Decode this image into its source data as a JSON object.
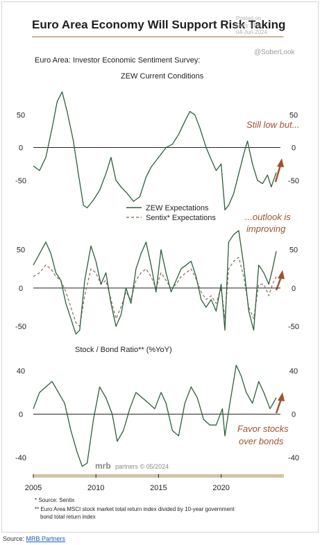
{
  "header": {
    "title": "Euro Area Economy Will Support Risk Taking",
    "watermark_posted": "Posted on",
    "watermark_site": "Daily Shot",
    "watermark_date": "04-Jun-2024",
    "watermark_handle": "@SoberLook"
  },
  "footer": {
    "footnote1": "*  Source: Sentix",
    "footnote2a": "** Euro Area MSCI stock market total return index divided by 10-year government",
    "footnote2b": "bond total return index",
    "brand_mrb": "mrb",
    "brand_partners": "partners © 05/2024",
    "source_label": "Source: ",
    "source_link": "MRB Partners"
  },
  "colors": {
    "zew": "#2d5e3a",
    "sentix": "#8a7a6a",
    "annotation": "#a0522d",
    "axis_bar": "#d2c4a8"
  },
  "x_axis": {
    "ticks": [
      2005,
      2010,
      2015,
      2020
    ],
    "range": [
      2005,
      2024.4
    ]
  },
  "chart_data": [
    {
      "type": "line",
      "title": "Euro Area:  Investor Economic Sentiment Survey:",
      "subtitle": "ZEW Current Conditions",
      "ylim": [
        -82,
        98
      ],
      "yticks": [
        50,
        0,
        -50
      ],
      "annotation": "Still low but...",
      "series": [
        {
          "name": "",
          "x": [
            2005,
            2005.5,
            2006,
            2006.5,
            2006.9,
            2007.3,
            2007.7,
            2008.2,
            2008.6,
            2009.0,
            2009.3,
            2009.8,
            2010.3,
            2010.8,
            2011.2,
            2011.6,
            2012.0,
            2012.5,
            2013.0,
            2013.5,
            2014.0,
            2014.4,
            2014.8,
            2015.2,
            2015.6,
            2016.1,
            2016.6,
            2017.1,
            2017.5,
            2017.9,
            2018.3,
            2018.8,
            2019.2,
            2019.6,
            2020.0,
            2020.3,
            2020.6,
            2021.0,
            2021.4,
            2021.8,
            2022.1,
            2022.5,
            2022.9,
            2023.3,
            2023.7,
            2024.0,
            2024.4
          ],
          "values": [
            -28,
            -35,
            -15,
            30,
            70,
            85,
            55,
            10,
            -40,
            -88,
            -92,
            -80,
            -65,
            -40,
            -15,
            -50,
            -60,
            -70,
            -82,
            -75,
            -45,
            -30,
            -20,
            -10,
            0,
            5,
            20,
            40,
            55,
            50,
            30,
            0,
            -18,
            -35,
            -25,
            -95,
            -88,
            -70,
            -40,
            -10,
            10,
            -25,
            -50,
            -55,
            -42,
            -60,
            -38
          ]
        }
      ]
    },
    {
      "type": "line",
      "title": "",
      "ylim": [
        -68,
        86
      ],
      "yticks": [
        50,
        0,
        -50
      ],
      "annotation_line1": "...outlook is",
      "annotation_line2": "improving",
      "series": [
        {
          "name": "ZEW Expectations",
          "x": [
            2005,
            2005.5,
            2006.0,
            2006.4,
            2006.8,
            2007.2,
            2007.6,
            2008.0,
            2008.4,
            2008.7,
            2009.1,
            2009.6,
            2010.0,
            2010.4,
            2010.8,
            2011.2,
            2011.6,
            2012.0,
            2012.4,
            2012.8,
            2013.2,
            2013.6,
            2014.0,
            2014.4,
            2014.8,
            2015.2,
            2015.6,
            2016.0,
            2016.4,
            2016.8,
            2017.2,
            2017.6,
            2018.0,
            2018.4,
            2018.8,
            2019.2,
            2019.6,
            2020.0,
            2020.3,
            2020.6,
            2021.0,
            2021.4,
            2021.8,
            2022.2,
            2022.6,
            2023.0,
            2023.4,
            2023.8,
            2024.1,
            2024.4
          ],
          "values": [
            30,
            45,
            60,
            45,
            20,
            10,
            -20,
            -40,
            -60,
            -55,
            10,
            55,
            35,
            5,
            20,
            -20,
            -50,
            -35,
            0,
            -20,
            25,
            45,
            60,
            30,
            -5,
            50,
            20,
            -5,
            10,
            25,
            30,
            35,
            15,
            -15,
            -25,
            -15,
            -30,
            5,
            -55,
            60,
            70,
            75,
            30,
            -30,
            -55,
            30,
            20,
            5,
            25,
            48
          ]
        },
        {
          "name": "Sentix* Expectations",
          "x": [
            2005,
            2005.5,
            2006.0,
            2006.4,
            2006.8,
            2007.2,
            2007.6,
            2008.0,
            2008.4,
            2008.7,
            2009.1,
            2009.6,
            2010.0,
            2010.4,
            2010.8,
            2011.2,
            2011.6,
            2012.0,
            2012.4,
            2012.8,
            2013.2,
            2013.6,
            2014.0,
            2014.4,
            2014.8,
            2015.2,
            2015.6,
            2016.0,
            2016.4,
            2016.8,
            2017.2,
            2017.6,
            2018.0,
            2018.4,
            2018.8,
            2019.2,
            2019.6,
            2020.0,
            2020.3,
            2020.6,
            2021.0,
            2021.4,
            2021.8,
            2022.2,
            2022.6,
            2023.0,
            2023.4,
            2023.8,
            2024.1,
            2024.4
          ],
          "values": [
            15,
            20,
            30,
            25,
            15,
            10,
            -5,
            -25,
            -45,
            -50,
            -10,
            25,
            20,
            5,
            10,
            -15,
            -40,
            -25,
            -5,
            -15,
            10,
            20,
            25,
            15,
            0,
            20,
            10,
            0,
            5,
            15,
            20,
            25,
            12,
            -5,
            -15,
            -10,
            -20,
            0,
            -40,
            25,
            35,
            40,
            15,
            -25,
            -40,
            5,
            5,
            -10,
            5,
            15
          ]
        }
      ]
    },
    {
      "type": "line",
      "title": "Stock / Bond Ratio** (%YoY)",
      "ylim": [
        -52,
        52
      ],
      "yticks": [
        40,
        0,
        -40
      ],
      "annotation_line1": "Favor stocks",
      "annotation_line2": "over bonds",
      "series": [
        {
          "name": "",
          "x": [
            2005,
            2005.5,
            2006.0,
            2006.5,
            2007.0,
            2007.5,
            2008.0,
            2008.5,
            2008.9,
            2009.3,
            2009.8,
            2010.3,
            2010.8,
            2011.3,
            2011.7,
            2012.2,
            2012.7,
            2013.2,
            2013.7,
            2014.2,
            2014.7,
            2015.2,
            2015.6,
            2016.1,
            2016.6,
            2017.1,
            2017.6,
            2018.1,
            2018.6,
            2019.1,
            2019.6,
            2020.1,
            2020.3,
            2020.7,
            2021.2,
            2021.6,
            2022.0,
            2022.5,
            2023.0,
            2023.4,
            2023.9,
            2024.4
          ],
          "values": [
            5,
            20,
            25,
            30,
            20,
            10,
            -15,
            -35,
            -48,
            -45,
            -5,
            25,
            15,
            0,
            -25,
            -15,
            5,
            20,
            15,
            10,
            5,
            20,
            10,
            -15,
            -20,
            10,
            25,
            15,
            -5,
            -10,
            -10,
            5,
            -20,
            10,
            45,
            35,
            20,
            10,
            30,
            20,
            5,
            15
          ]
        }
      ]
    }
  ]
}
